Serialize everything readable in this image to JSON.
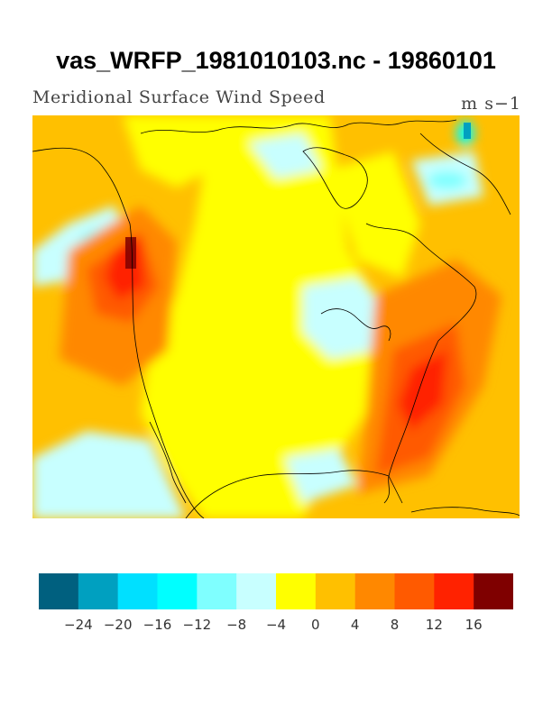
{
  "header": {
    "title": "vas_WRFP_1981010103.nc - 19860101",
    "left_string": "Meridional Surface Wind Speed",
    "right_string": "m s−1"
  },
  "colorbar": {
    "colors": [
      "#00607f",
      "#00a0c0",
      "#00e0ff",
      "#00ffff",
      "#7fffff",
      "#c8ffff",
      "#ffff00",
      "#ffc000",
      "#ff8800",
      "#ff5a00",
      "#ff2200",
      "#7f0000"
    ],
    "labels": [
      "−24",
      "−20",
      "−16",
      "−12",
      "−8",
      "−4",
      "0",
      "4",
      "8",
      "12",
      "16"
    ]
  }
}
